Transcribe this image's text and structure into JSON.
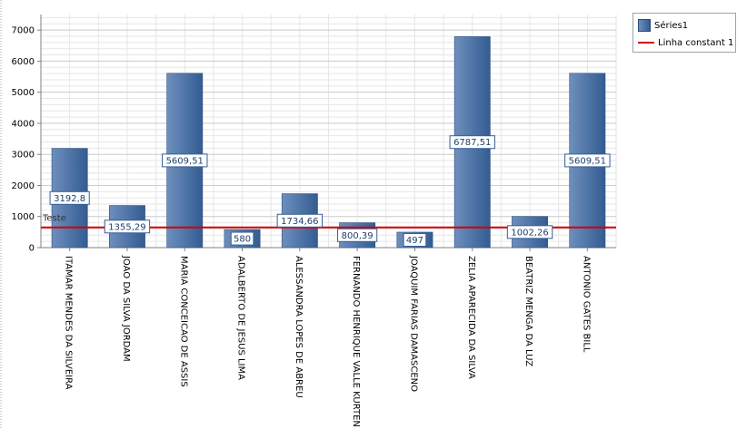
{
  "chart_data": {
    "type": "bar",
    "categories": [
      "ITAMAR MENDES DA SILVEIRA",
      "JOAO DA SILVA JORDAM",
      "MARIA CONCEICAO DE ASSIS",
      "ADALBERTO DE JESUS LIMA",
      "ALESSANDRA LOPES DE ABREU",
      "FERNANDO HENRIQUE VALLE KURTEN",
      "JOAQUIM FARIAS DAMASCENO",
      "ZELIA APARECIDA DA SILVA",
      "BEATRIZ MENGA DA LUZ",
      "ANTONIO GATES BILL"
    ],
    "series": [
      {
        "name": "Séries1",
        "values": [
          3192.8,
          1355.29,
          5609.51,
          580,
          1734.66,
          800.39,
          497,
          6787.51,
          1002.26,
          5609.51
        ],
        "labels": [
          "3192,8",
          "1355,29",
          "5609,51",
          "580",
          "1734,66",
          "800,39",
          "497",
          "6787,51",
          "1002,26",
          "5609,51"
        ]
      }
    ],
    "constant_line": {
      "name": "Linha constant 1",
      "value": 650,
      "label": "Teste",
      "color": "#d40000"
    },
    "yticks": [
      0,
      1000,
      2000,
      3000,
      4000,
      5000,
      6000,
      7000
    ],
    "ylim": [
      0,
      7500
    ],
    "grid": true,
    "legend_position": "top-right",
    "colors": {
      "bar_light": "#6e8fbd",
      "bar_dark": "#335c92",
      "constant_line": "#d40000"
    }
  },
  "legend": {
    "series_label": "Séries1",
    "line_label": "Linha constant 1"
  }
}
